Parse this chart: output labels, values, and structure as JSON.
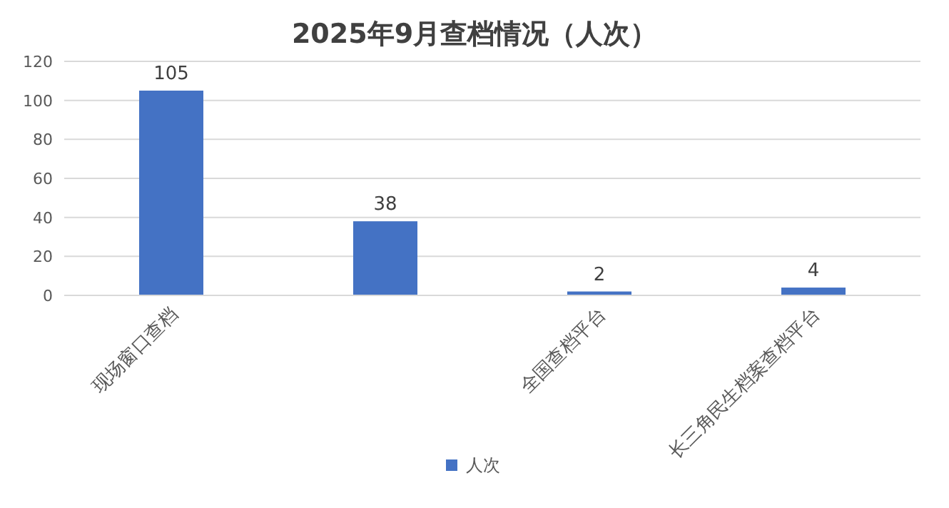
{
  "chart_data": {
    "type": "bar",
    "title": "2025年9月查档情况（人次）",
    "categories": [
      "现场窗口查档",
      null,
      "全国查档平台",
      "长三角民生档案查档平台"
    ],
    "series": [
      {
        "name": "人次",
        "color": "#4472c4",
        "values": [
          105,
          38,
          2,
          4
        ]
      }
    ],
    "ylim": [
      0,
      120
    ],
    "yticks": [
      0,
      20,
      40,
      60,
      80,
      100,
      120
    ],
    "grid": "y",
    "legend": "bottom",
    "data_labels": true
  }
}
